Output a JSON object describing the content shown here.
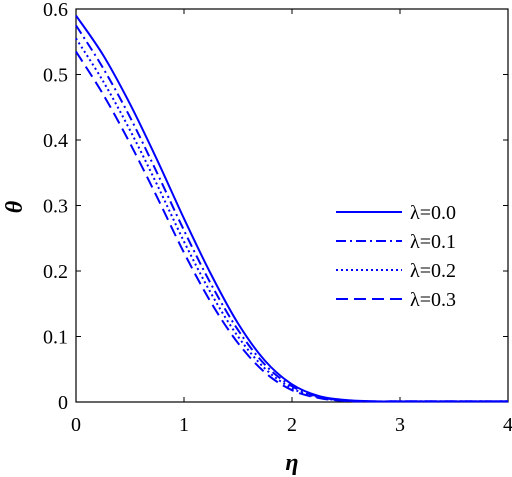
{
  "chart_data": {
    "type": "line",
    "xlabel": "η",
    "ylabel": "θ",
    "xlim": [
      0,
      4
    ],
    "ylim": [
      0,
      0.6
    ],
    "xticks": [
      "0",
      "1",
      "2",
      "3",
      "4"
    ],
    "yticks": [
      "0",
      "0.1",
      "0.2",
      "0.3",
      "0.4",
      "0.5",
      "0.6"
    ],
    "grid": false,
    "legend_position": "right-middle",
    "line_color": "#0000ff",
    "x": [
      0,
      0.25,
      0.5,
      0.75,
      1.0,
      1.25,
      1.5,
      1.75,
      2.0,
      2.25,
      2.5,
      2.75,
      3.0,
      3.5,
      4.0
    ],
    "series": [
      {
        "name": "λ=0.0",
        "dash": "solid",
        "values": [
          0.59,
          0.53,
          0.455,
          0.37,
          0.28,
          0.195,
          0.12,
          0.063,
          0.027,
          0.009,
          0.003,
          0.001,
          0.0,
          0.0,
          0.0
        ]
      },
      {
        "name": "λ=0.1",
        "dash": "dashdot",
        "values": [
          0.575,
          0.51,
          0.435,
          0.35,
          0.262,
          0.18,
          0.11,
          0.057,
          0.024,
          0.008,
          0.002,
          0.0005,
          0.0,
          0.0,
          0.0
        ]
      },
      {
        "name": "λ=0.2",
        "dash": "dotted",
        "values": [
          0.555,
          0.49,
          0.415,
          0.332,
          0.245,
          0.166,
          0.1,
          0.051,
          0.021,
          0.007,
          0.002,
          0.0005,
          0.0,
          0.0,
          0.0
        ]
      },
      {
        "name": "λ=0.3",
        "dash": "dashed",
        "values": [
          0.535,
          0.47,
          0.395,
          0.313,
          0.228,
          0.152,
          0.09,
          0.045,
          0.018,
          0.006,
          0.0015,
          0.0003,
          0.0,
          0.0,
          0.0
        ]
      }
    ]
  }
}
